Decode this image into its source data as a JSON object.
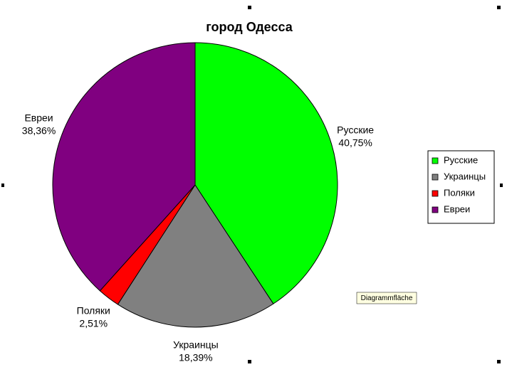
{
  "chart_data": {
    "type": "pie",
    "title": "город Одесса",
    "categories": [
      "Русские",
      "Украинцы",
      "Поляки",
      "Евреи"
    ],
    "values": [
      40.75,
      18.39,
      2.51,
      38.36
    ],
    "value_labels": [
      "40,75%",
      "18,39%",
      "2,51%",
      "38,36%"
    ],
    "colors": [
      "#00ff00",
      "#808080",
      "#ff0000",
      "#800080"
    ],
    "legend": "right"
  },
  "tooltip": "Diagrammfläche"
}
